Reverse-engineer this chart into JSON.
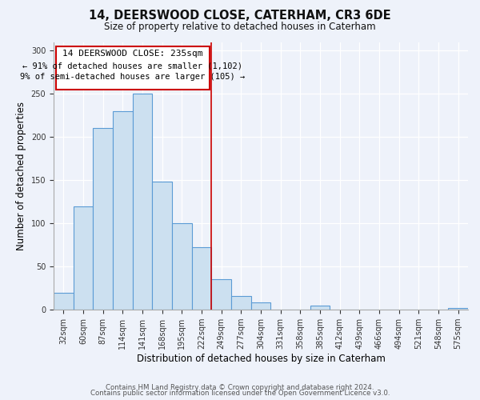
{
  "title": "14, DEERSWOOD CLOSE, CATERHAM, CR3 6DE",
  "subtitle": "Size of property relative to detached houses in Caterham",
  "xlabel": "Distribution of detached houses by size in Caterham",
  "ylabel": "Number of detached properties",
  "bin_labels": [
    "32sqm",
    "60sqm",
    "87sqm",
    "114sqm",
    "141sqm",
    "168sqm",
    "195sqm",
    "222sqm",
    "249sqm",
    "277sqm",
    "304sqm",
    "331sqm",
    "358sqm",
    "385sqm",
    "412sqm",
    "439sqm",
    "466sqm",
    "494sqm",
    "521sqm",
    "548sqm",
    "575sqm"
  ],
  "bar_heights": [
    20,
    120,
    210,
    230,
    250,
    148,
    100,
    72,
    35,
    16,
    9,
    0,
    0,
    5,
    0,
    0,
    0,
    0,
    0,
    0,
    2
  ],
  "bar_color": "#cce0f0",
  "bar_edge_color": "#5b9bd5",
  "vline_x_index": 8,
  "vline_color": "#cc0000",
  "annotation_title": "14 DEERSWOOD CLOSE: 235sqm",
  "annotation_line1": "← 91% of detached houses are smaller (1,102)",
  "annotation_line2": "9% of semi-detached houses are larger (105) →",
  "annotation_box_color": "#ffffff",
  "annotation_box_edge": "#cc0000",
  "ylim": [
    0,
    310
  ],
  "yticks": [
    0,
    50,
    100,
    150,
    200,
    250,
    300
  ],
  "footer1": "Contains HM Land Registry data © Crown copyright and database right 2024.",
  "footer2": "Contains public sector information licensed under the Open Government Licence v3.0.",
  "bg_color": "#eef2fa"
}
